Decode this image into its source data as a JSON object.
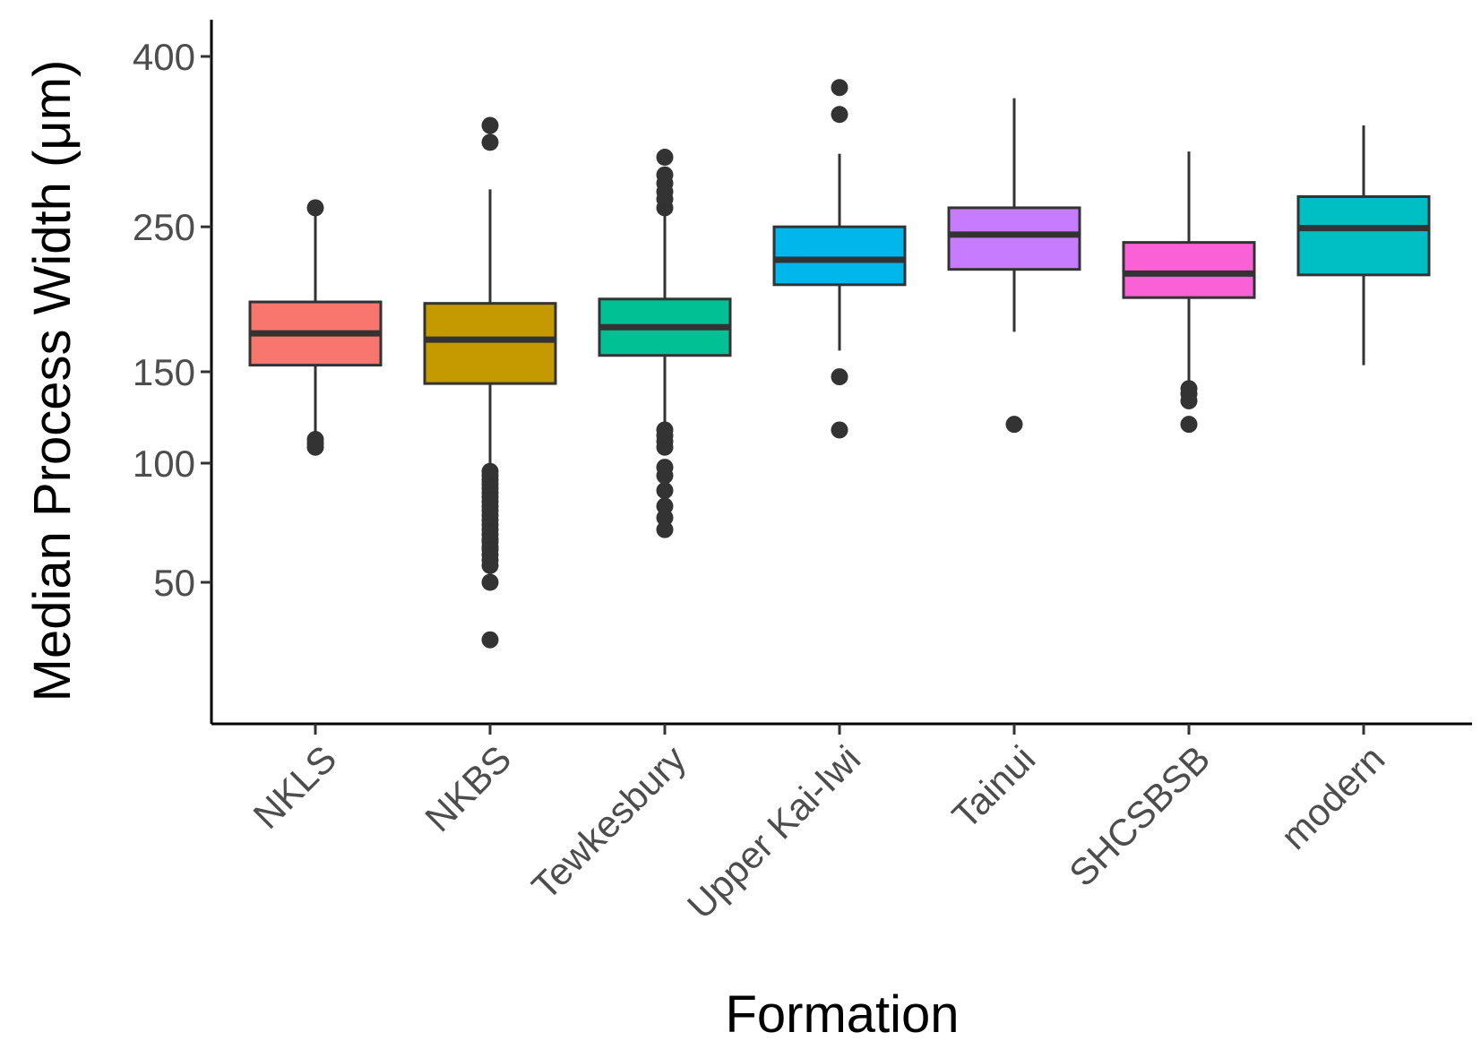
{
  "chart_data": {
    "type": "boxplot",
    "title": "",
    "xlabel": "Formation",
    "ylabel": "Median Process Width (μm)",
    "yscale": "sqrt",
    "ylim": [
      25,
      430
    ],
    "yticks": [
      50,
      100,
      150,
      250,
      400
    ],
    "grid": false,
    "legend": "none",
    "categories": [
      "NKLS",
      "NKBS",
      "Tewkesbury",
      "Upper Kai-Iwi",
      "Tainui",
      "SHCSBSB",
      "modern"
    ],
    "colors": [
      "#F8766D",
      "#C49A00",
      "#00C094",
      "#00B6EB",
      "#C77CFF",
      "#FB61D7",
      "#00BFC4"
    ],
    "boxes": [
      {
        "category": "NKLS",
        "whisker_low": 112,
        "q1": 154,
        "median": 174,
        "q3": 195,
        "whisker_high": 265,
        "outliers": [
          108,
          110,
          112,
          265
        ]
      },
      {
        "category": "NKBS",
        "whisker_low": 97,
        "q1": 143,
        "median": 170,
        "q3": 194,
        "whisker_high": 280,
        "outliers": [
          32,
          50,
          56,
          58,
          60,
          62,
          63,
          65,
          66,
          68,
          70,
          72,
          74,
          76,
          78,
          80,
          82,
          84,
          86,
          88,
          90,
          92,
          94,
          96,
          320,
          335
        ]
      },
      {
        "category": "Tewkesbury",
        "whisker_low": 118,
        "q1": 160,
        "median": 178,
        "q3": 197,
        "whisker_high": 270,
        "outliers": [
          70,
          75,
          80,
          87,
          94,
          98,
          108,
          111,
          114,
          117,
          265,
          272,
          278,
          285,
          292,
          307
        ]
      },
      {
        "category": "Upper Kai-Iwi",
        "whisker_low": 163,
        "q1": 207,
        "median": 225,
        "q3": 250,
        "whisker_high": 310,
        "outliers": [
          117,
          147,
          345,
          370
        ]
      },
      {
        "category": "Tainui",
        "whisker_low": 175,
        "q1": 218,
        "median": 244,
        "q3": 265,
        "whisker_high": 360,
        "outliers": [
          120
        ]
      },
      {
        "category": "SHCSBSB",
        "whisker_low": 142,
        "q1": 198,
        "median": 215,
        "q3": 238,
        "whisker_high": 312,
        "outliers": [
          120,
          133,
          137,
          140
        ]
      },
      {
        "category": "modern",
        "whisker_low": 154,
        "q1": 214,
        "median": 249,
        "q3": 274,
        "whisker_high": 335,
        "outliers": []
      }
    ]
  }
}
